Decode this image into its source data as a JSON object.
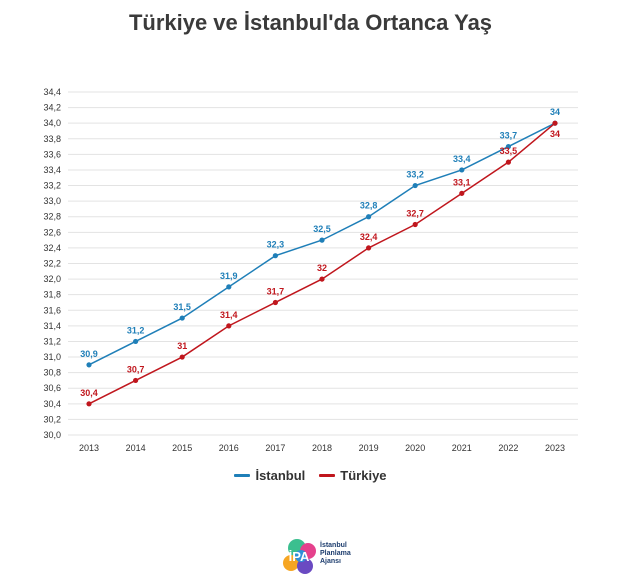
{
  "colors": {
    "istanbul": "#1f7fb8",
    "turkiye": "#c0161d",
    "grid": "#e3e3e3"
  },
  "logo": {
    "mark": "İPA",
    "line1": "İstanbul",
    "line2": "Planlama",
    "line3": "Ajansı"
  },
  "chart_data": {
    "type": "line",
    "title": "Türkiye ve İstanbul'da Ortanca Yaş",
    "xlabel": "",
    "ylabel": "",
    "categories": [
      "2013",
      "2014",
      "2015",
      "2016",
      "2017",
      "2018",
      "2019",
      "2020",
      "2021",
      "2022",
      "2023"
    ],
    "ylim": [
      30.0,
      34.4
    ],
    "yticks": [
      "30,0",
      "30,2",
      "30,4",
      "30,6",
      "30,8",
      "31,0",
      "31,2",
      "31,4",
      "31,6",
      "31,8",
      "32,0",
      "32,2",
      "32,4",
      "32,6",
      "32,8",
      "33,0",
      "33,2",
      "33,4",
      "33,6",
      "33,8",
      "34,0",
      "34,2",
      "34,4"
    ],
    "grid": true,
    "legend": "bottom",
    "series": [
      {
        "name": "İstanbul",
        "color": "#1f7fb8",
        "values": [
          30.9,
          31.2,
          31.5,
          31.9,
          32.3,
          32.5,
          32.8,
          33.2,
          33.4,
          33.7,
          34.0
        ],
        "labels": [
          "30,9",
          "31,2",
          "31,5",
          "31,9",
          "32,3",
          "32,5",
          "32,8",
          "33,2",
          "33,4",
          "33,7",
          "34"
        ]
      },
      {
        "name": "Türkiye",
        "color": "#c0161d",
        "values": [
          30.4,
          30.7,
          31.0,
          31.4,
          31.7,
          32.0,
          32.4,
          32.7,
          33.1,
          33.5,
          34.0
        ],
        "labels": [
          "30,4",
          "30,7",
          "31",
          "31,4",
          "31,7",
          "32",
          "32,4",
          "32,7",
          "33,1",
          "33,5",
          "34"
        ]
      }
    ]
  }
}
